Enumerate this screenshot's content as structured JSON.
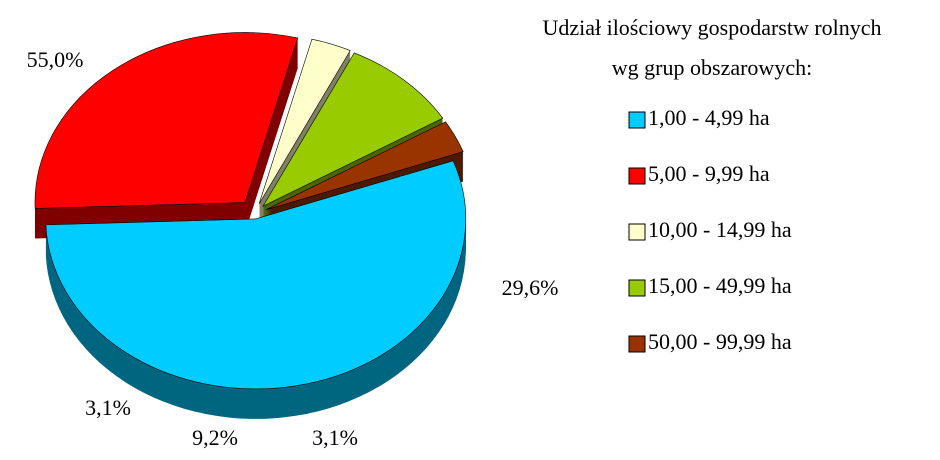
{
  "chart_data": {
    "type": "pie",
    "title": [
      "Udział ilościowy gospodarstw rolnych",
      "wg grup obszarowych:"
    ],
    "categories": [
      "1,00 - 4,99 ha",
      "5,00 - 9,99 ha",
      "10,00 - 14,99 ha",
      "15,00 - 49,99 ha",
      "50,00 - 99,99 ha"
    ],
    "values": [
      55.0,
      29.6,
      3.1,
      9.2,
      3.1
    ],
    "value_labels": [
      "55,0%",
      "29,6%",
      "3,1%",
      "9,2%",
      "3,1%"
    ],
    "colors": [
      "#00ccff",
      "#ff0000",
      "#ffffcc",
      "#99cc00",
      "#993300"
    ],
    "legend": "right"
  }
}
